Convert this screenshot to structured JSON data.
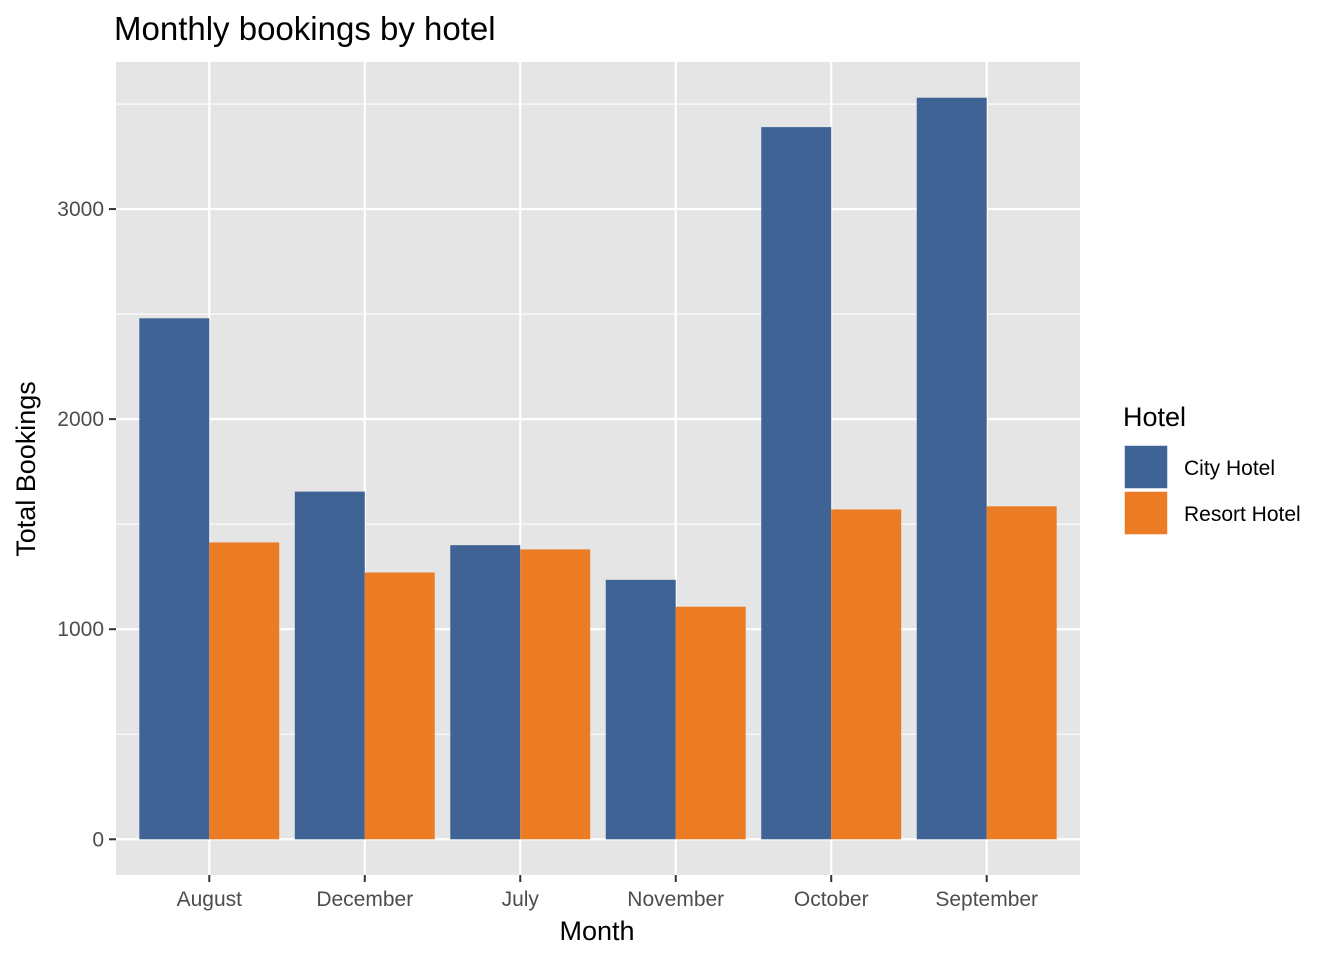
{
  "chart_data": {
    "type": "bar",
    "title": "Monthly bookings by hotel",
    "xlabel": "Month",
    "ylabel": "Total Bookings",
    "categories": [
      "August",
      "December",
      "July",
      "November",
      "October",
      "September"
    ],
    "series": [
      {
        "name": "City Hotel",
        "values": [
          2480,
          1655,
          1400,
          1235,
          3390,
          3530
        ],
        "color": "#3e6394"
      },
      {
        "name": "Resort Hotel",
        "values": [
          1413,
          1270,
          1380,
          1107,
          1570,
          1585
        ],
        "color": "#ec7c24"
      }
    ],
    "ylim": [
      -170,
      3700
    ],
    "yticks": [
      0,
      1000,
      2000,
      3000
    ],
    "grid": true,
    "legend": {
      "title": "Hotel",
      "placement": "right"
    },
    "colors": {
      "panel": "#e5e5e5",
      "grid": "#ffffff",
      "tick_text": "#4d4d4d",
      "tick_mark": "#333333"
    }
  }
}
